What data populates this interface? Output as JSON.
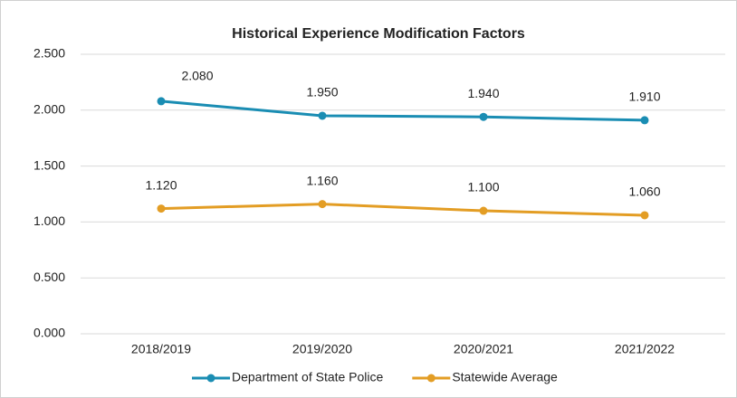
{
  "chart_data": {
    "type": "line",
    "title": "Historical Experience Modification Factors",
    "categories": [
      "2018/2019",
      "2019/2020",
      "2020/2021",
      "2021/2022"
    ],
    "series": [
      {
        "name": "Department of State Police",
        "color": "#1a8db3",
        "values": [
          2.08,
          1.95,
          1.94,
          1.91
        ],
        "value_labels": [
          "2.080",
          "1.950",
          "1.940",
          "1.910"
        ]
      },
      {
        "name": "Statewide Average",
        "color": "#e39d24",
        "values": [
          1.12,
          1.16,
          1.1,
          1.06
        ],
        "value_labels": [
          "1.120",
          "1.160",
          "1.100",
          "1.060"
        ]
      }
    ],
    "ylim": [
      0,
      2.5
    ],
    "yticks": [
      {
        "value": 0,
        "label": "0.000"
      },
      {
        "value": 0.5,
        "label": "0.500"
      },
      {
        "value": 1,
        "label": "1.000"
      },
      {
        "value": 1.5,
        "label": "1.500"
      },
      {
        "value": 2,
        "label": "2.000"
      },
      {
        "value": 2.5,
        "label": "2.500"
      }
    ],
    "grid": true,
    "legend": "bottom"
  }
}
